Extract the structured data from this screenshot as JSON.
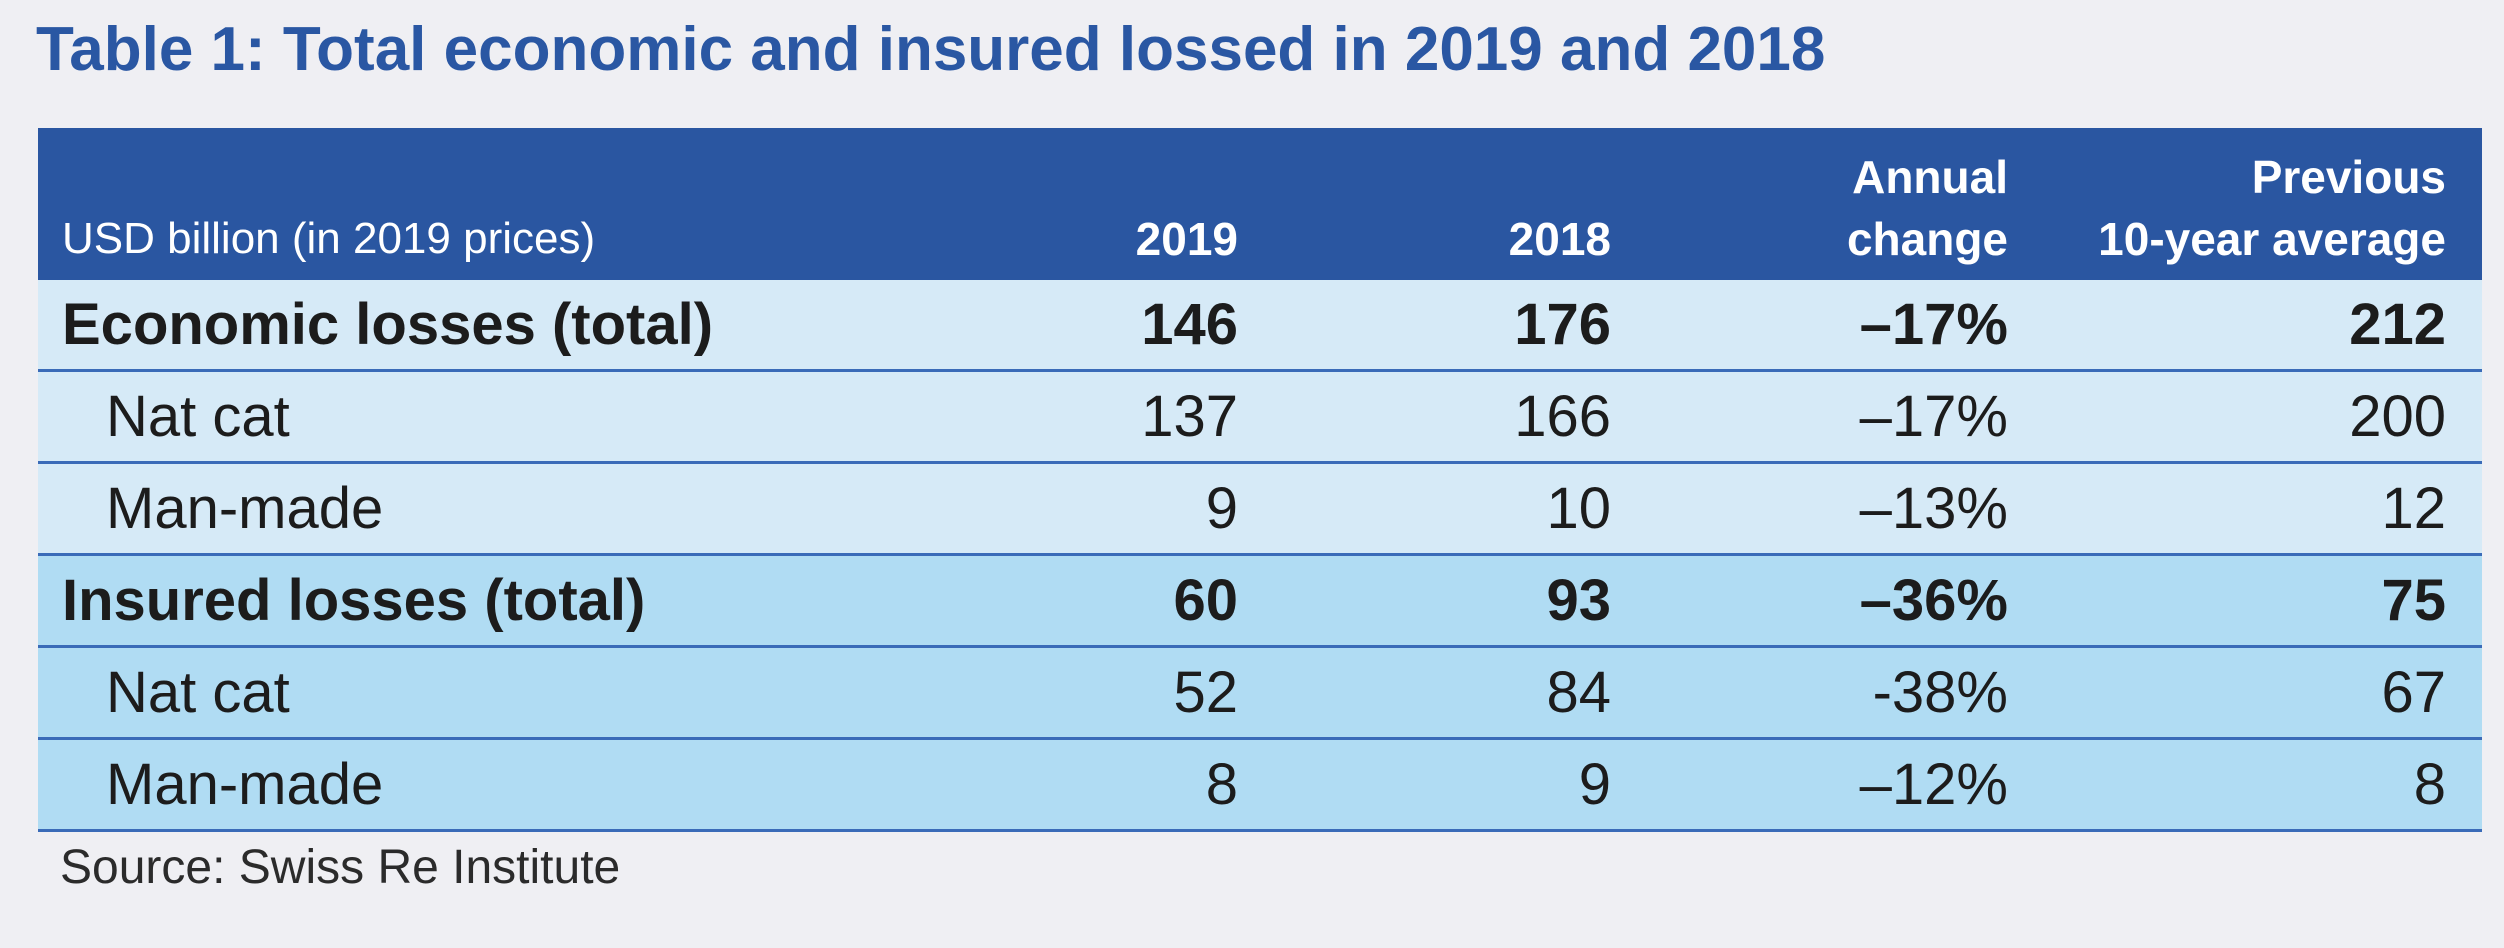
{
  "title": "Table 1: Total economic and insured lossed in 2019 and 2018",
  "header": {
    "label": "USD billion (in 2019 prices)",
    "col_2019": "2019",
    "col_2018": "2018",
    "annual_line1": "Annual",
    "annual_line2": "change",
    "avg_line1": "Previous",
    "avg_line2": "10-year average"
  },
  "rows": [
    {
      "label": "Economic losses (total)",
      "v2019": "146",
      "v2018": "176",
      "change": "–17%",
      "avg": "212"
    },
    {
      "label": "Nat cat",
      "v2019": "137",
      "v2018": "166",
      "change": "–17%",
      "avg": "200"
    },
    {
      "label": "Man-made",
      "v2019": "9",
      "v2018": "10",
      "change": "–13%",
      "avg": "12"
    },
    {
      "label": "Insured losses (total)",
      "v2019": "60",
      "v2018": "93",
      "change": "–36%",
      "avg": "75"
    },
    {
      "label": "Nat cat",
      "v2019": "52",
      "v2018": "84",
      "change": "-38%",
      "avg": "67"
    },
    {
      "label": "Man-made",
      "v2019": "8",
      "v2018": "9",
      "change": "–12%",
      "avg": "8"
    }
  ],
  "source": "Source: Swiss Re Institute",
  "colors": {
    "title": "#2a57a3",
    "header_bg": "#2a56a1",
    "economic_bg": "#d6eaf7",
    "insured_bg": "#b0dcf3",
    "row_border": "#3a6bb8"
  }
}
